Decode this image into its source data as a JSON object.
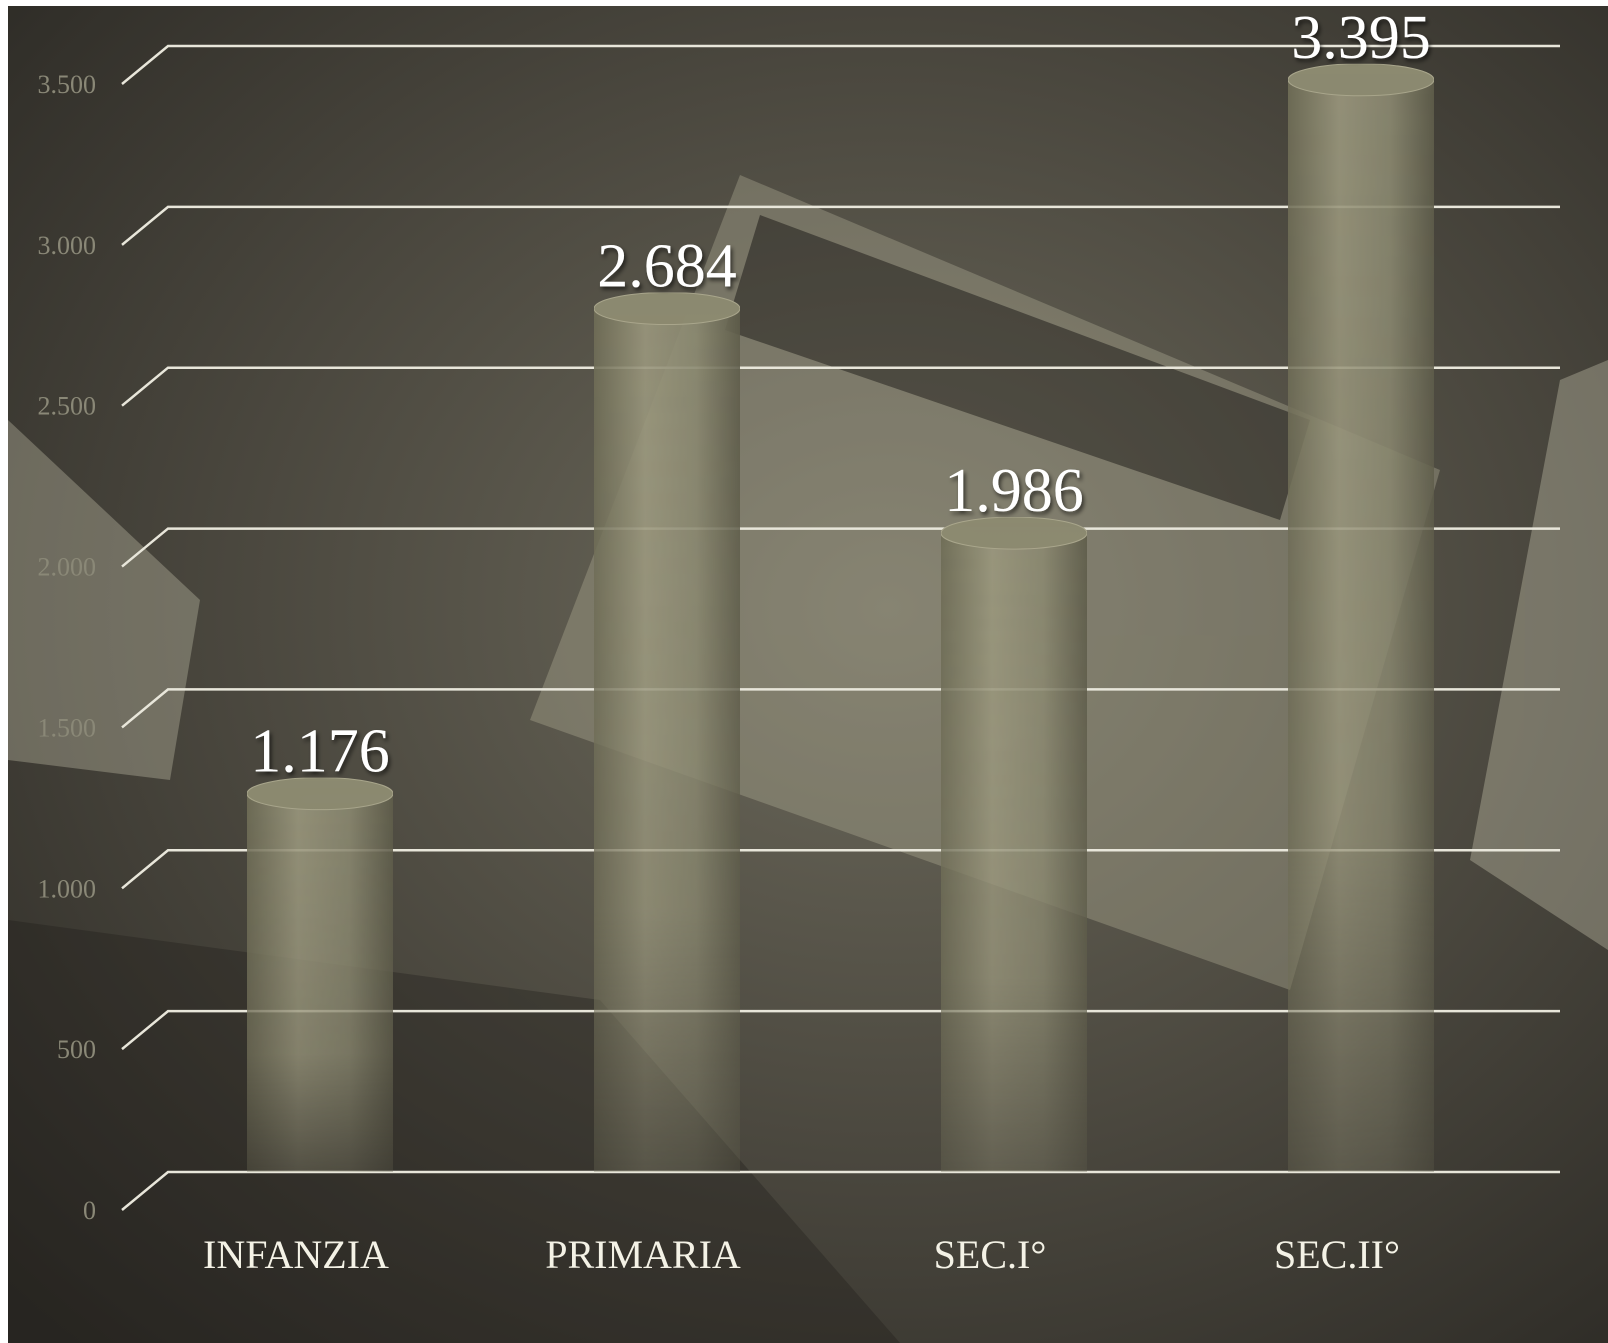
{
  "chart_data": {
    "type": "cylinder-bar",
    "categories": [
      "INFANZIA",
      "PRIMARIA",
      "SEC.I°",
      "SEC.II°"
    ],
    "values": [
      1176,
      2684,
      1986,
      3395
    ],
    "value_labels": [
      "1.176",
      "2.684",
      "1.986",
      "3.395"
    ],
    "color": "#8c8a70",
    "ylim": [
      0,
      3500
    ],
    "yticks": [
      0,
      500,
      {
        "value": 1000,
        "label": "1.000"
      },
      {
        "value": 1500,
        "label": "1.500"
      },
      {
        "value": 2000,
        "label": "2.000"
      },
      {
        "value": 2500,
        "label": "2.500"
      },
      {
        "value": 3000,
        "label": "3.000"
      },
      {
        "value": 3500,
        "label": "3.500"
      }
    ],
    "grid": true
  }
}
